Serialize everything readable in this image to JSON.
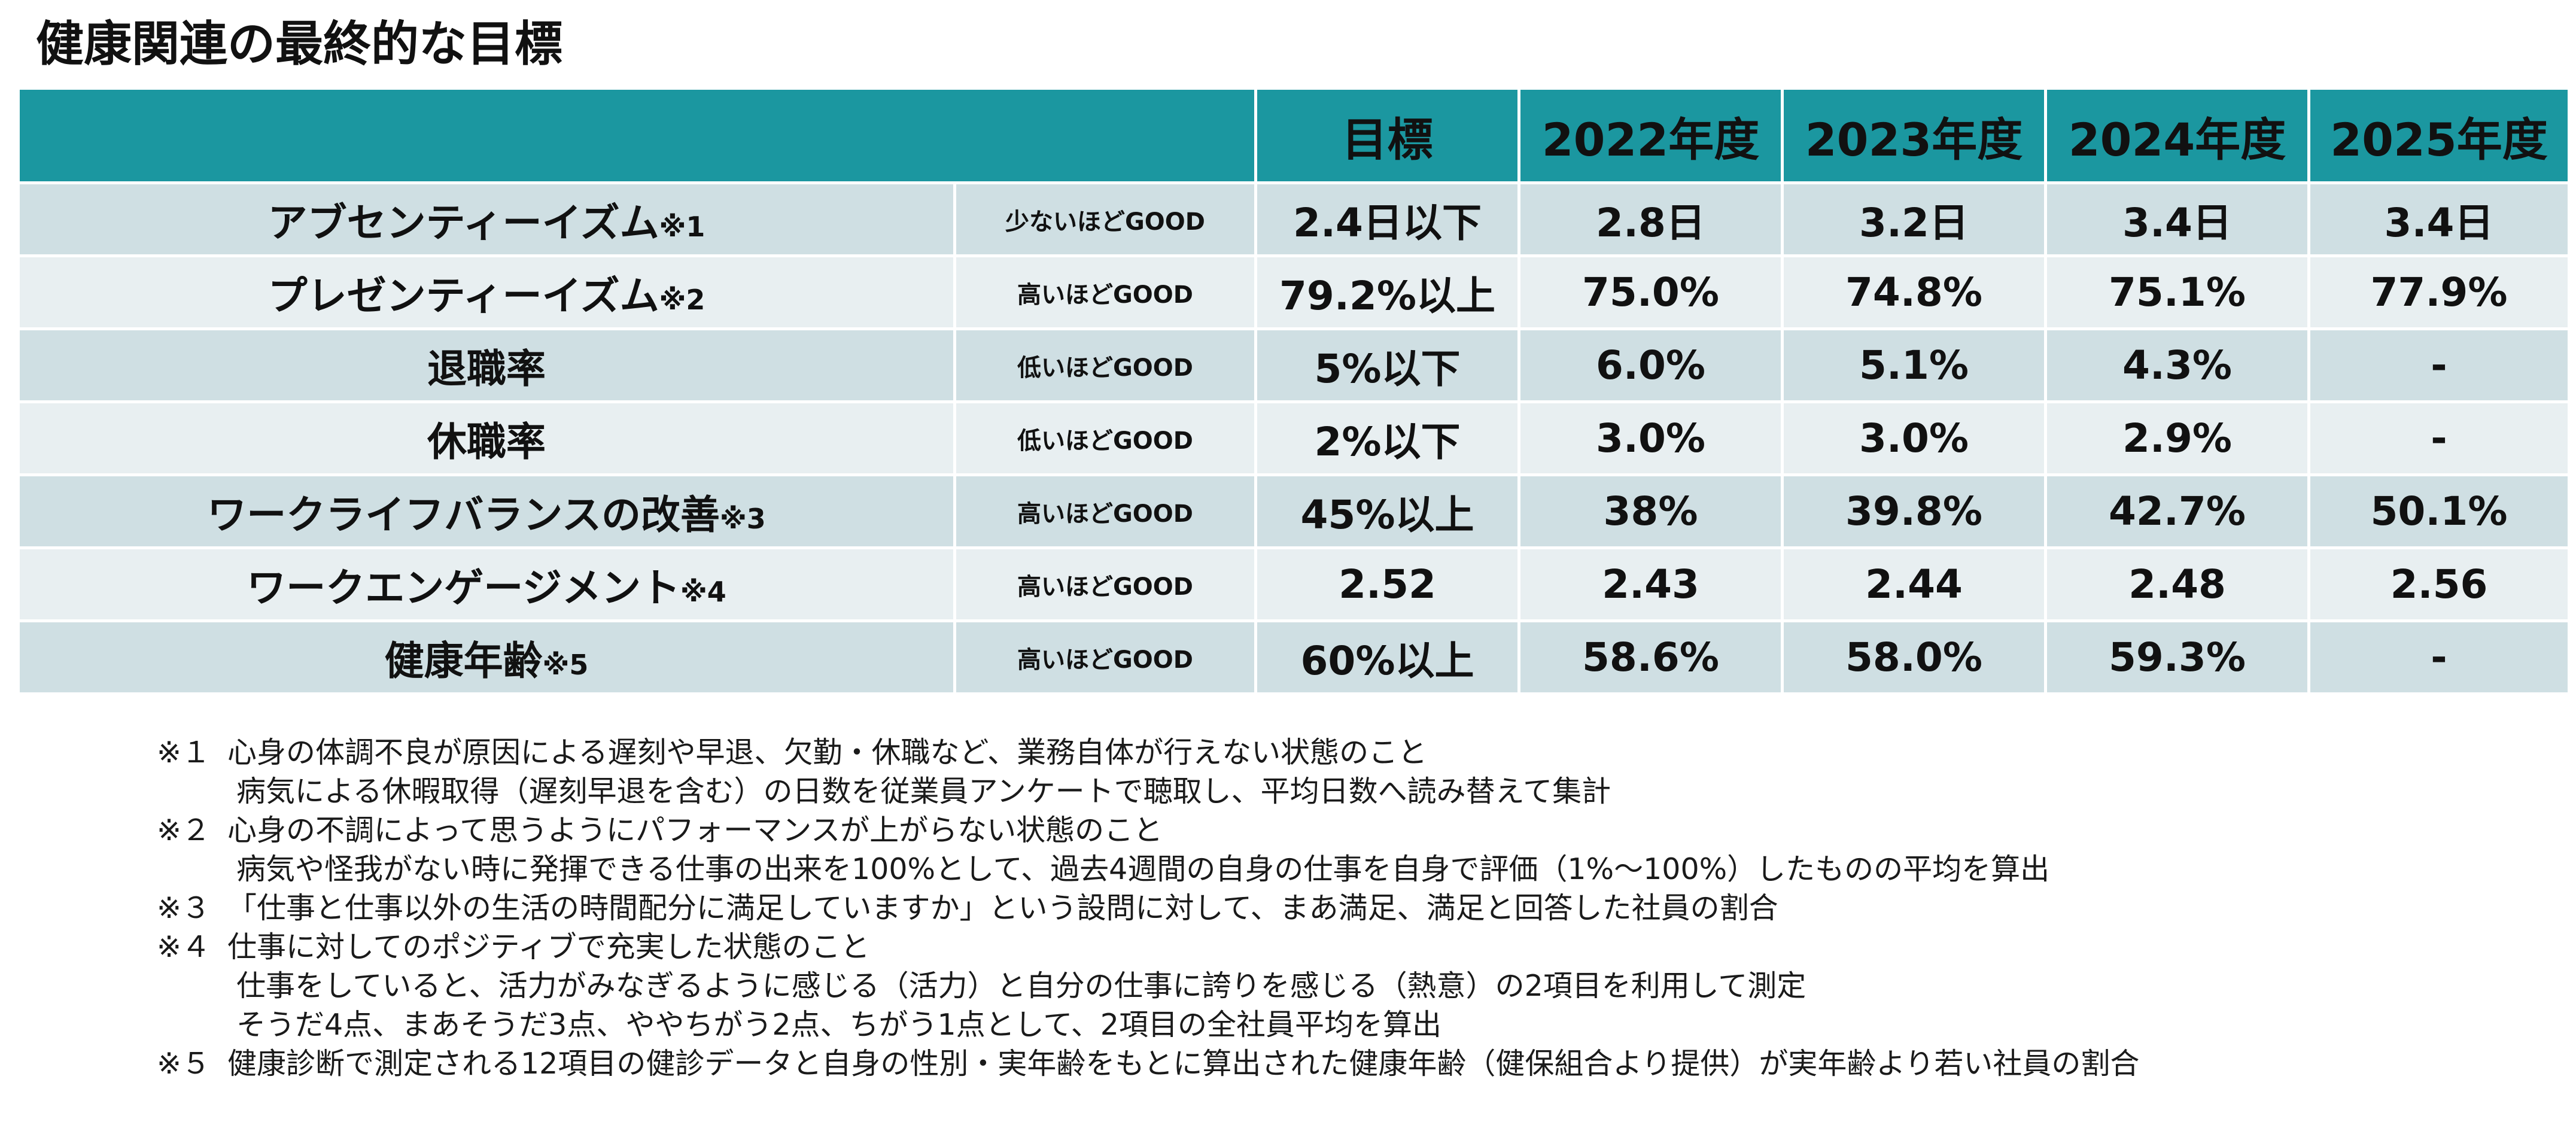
{
  "title": "健康関連の最終的な目標",
  "colors": {
    "header_bg": "#1b97a0",
    "row_odd": "#cfdfe3",
    "row_even": "#e8eff1"
  },
  "table": {
    "headers": [
      "目標",
      "2022年度",
      "2023年度",
      "2024年度",
      "2025年度"
    ],
    "rows": [
      {
        "name": "アブセンティーイズム",
        "mark": "※1",
        "direction": "少ないほどGOOD",
        "target": "2.4日以下",
        "y2022": "2.8日",
        "y2023": "3.2日",
        "y2024": "3.4日",
        "y2025": "3.4日"
      },
      {
        "name": "プレゼンティーイズム",
        "mark": "※2",
        "direction": "高いほどGOOD",
        "target": "79.2%以上",
        "y2022": "75.0%",
        "y2023": "74.8%",
        "y2024": "75.1%",
        "y2025": "77.9%"
      },
      {
        "name": "退職率",
        "mark": "",
        "direction": "低いほどGOOD",
        "target": "5%以下",
        "y2022": "6.0%",
        "y2023": "5.1%",
        "y2024": "4.3%",
        "y2025": "-"
      },
      {
        "name": "休職率",
        "mark": "",
        "direction": "低いほどGOOD",
        "target": "2%以下",
        "y2022": "3.0%",
        "y2023": "3.0%",
        "y2024": "2.9%",
        "y2025": "-"
      },
      {
        "name": "ワークライフバランスの改善",
        "mark": "※3",
        "direction": "高いほどGOOD",
        "target": "45%以上",
        "y2022": "38%",
        "y2023": "39.8%",
        "y2024": "42.7%",
        "y2025": "50.1%"
      },
      {
        "name": "ワークエンゲージメント",
        "mark": "※4",
        "direction": "高いほどGOOD",
        "target": "2.52",
        "y2022": "2.43",
        "y2023": "2.44",
        "y2024": "2.48",
        "y2025": "2.56"
      },
      {
        "name": "健康年齢",
        "mark": "※5",
        "direction": "高いほどGOOD",
        "target": "60%以上",
        "y2022": "58.6%",
        "y2023": "58.0%",
        "y2024": "59.3%",
        "y2025": "-"
      }
    ]
  },
  "notes": {
    "n1": {
      "mark": "※１",
      "text": "心身の体調不良が原因による遅刻や早退、欠勤・休職など、業務自体が行えない状態のこと",
      "cont1": "病気による休暇取得（遅刻早退を含む）の日数を従業員アンケートで聴取し、平均日数へ読み替えて集計"
    },
    "n2": {
      "mark": "※２",
      "text": "心身の不調によって思うようにパフォーマンスが上がらない状態のこと",
      "cont1": "病気や怪我がない時に発揮できる仕事の出来を100%として、過去4週間の自身の仕事を自身で評価（1%～100%）したものの平均を算出"
    },
    "n3": {
      "mark": "※３",
      "text": "「仕事と仕事以外の生活の時間配分に満足していますか」という設問に対して、まあ満足、満足と回答した社員の割合"
    },
    "n4": {
      "mark": "※４",
      "text": "仕事に対してのポジティブで充実した状態のこと",
      "cont1": "仕事をしていると、活力がみなぎるように感じる（活力）と自分の仕事に誇りを感じる（熱意）の2項目を利用して測定",
      "cont2": "そうだ4点、まあそうだ3点、ややちがう2点、ちがう1点として、2項目の全社員平均を算出"
    },
    "n5": {
      "mark": "※５",
      "text": "健康診断で測定される12項目の健診データと自身の性別・実年齢をもとに算出された健康年齢（健保組合より提供）が実年齢より若い社員の割合"
    }
  }
}
